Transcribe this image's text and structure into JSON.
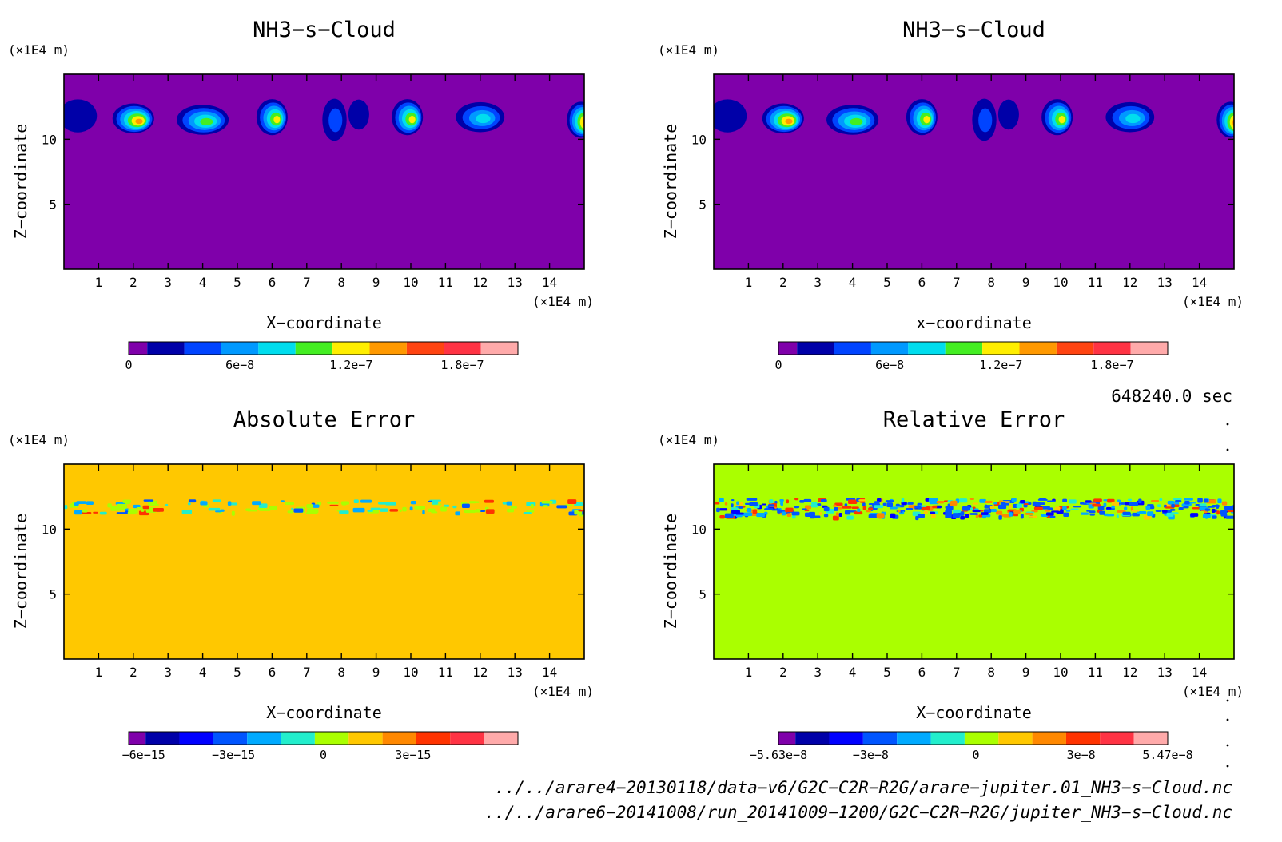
{
  "panels": [
    {
      "title": "NH3−s−Cloud",
      "xlabel": "X−coordinate",
      "ylabel": "Z−coordinate",
      "xunit": "(×1E4 m)",
      "yunit": "(×1E4 m)",
      "background": "#7f00aa",
      "colorbar_colors": [
        "#7f00aa",
        "#0000a8",
        "#0044ff",
        "#0099ff",
        "#00ddee",
        "#44ee22",
        "#ffee00",
        "#ff9900",
        "#ff4411",
        "#ff3344",
        "#ffaaaa"
      ],
      "colorbar_labels": [
        "0",
        "6e−8",
        "1.2e−7",
        "1.8e−7"
      ]
    },
    {
      "title": "NH3−s−Cloud",
      "xlabel": "x−coordinate",
      "ylabel": "Z−coordinate",
      "xunit": "(×1E4 m)",
      "yunit": "(×1E4 m)",
      "background": "#7f00aa",
      "colorbar_colors": [
        "#7f00aa",
        "#0000a8",
        "#0044ff",
        "#0099ff",
        "#00ddee",
        "#44ee22",
        "#ffee00",
        "#ff9900",
        "#ff4411",
        "#ff3344",
        "#ffaaaa"
      ],
      "colorbar_labels": [
        "0",
        "6e−8",
        "1.2e−7",
        "1.8e−7"
      ]
    },
    {
      "title": "Absolute Error",
      "xlabel": "X−coordinate",
      "ylabel": "Z−coordinate",
      "xunit": "(×1E4 m)",
      "yunit": "(×1E4 m)",
      "background": "#ffc800",
      "colorbar_colors": [
        "#7f00aa",
        "#0000a8",
        "#0000ff",
        "#0055ff",
        "#00aaff",
        "#22eecc",
        "#aaff00",
        "#ffc800",
        "#ff8800",
        "#ff3300",
        "#ff3344",
        "#ffaaaa"
      ],
      "colorbar_labels": [
        "−6e−15",
        "−3e−15",
        "0",
        "3e−15"
      ]
    },
    {
      "title": "Relative Error",
      "xlabel": "X−coordinate",
      "ylabel": "Z−coordinate",
      "xunit": "(×1E4 m)",
      "yunit": "(×1E4 m)",
      "background": "#aaff00",
      "colorbar_colors": [
        "#7f00aa",
        "#0000a8",
        "#0000ff",
        "#0055ff",
        "#00aaff",
        "#22eecc",
        "#aaff00",
        "#ffc800",
        "#ff8800",
        "#ff3300",
        "#ff3344",
        "#ffaaaa"
      ],
      "colorbar_labels": [
        "−5.63e−8",
        "−3e−8",
        "0",
        "3e−8",
        "5.47e−8"
      ]
    }
  ],
  "time_label": "648240.0 sec",
  "footer": {
    "line1": "../../arare4−20130118/data−v6/G2C−C2R−R2G/arare−jupiter.01_NH3−s−Cloud.nc",
    "line2": "../../arare6−20141008/run_20141009−1200/G2C−C2R−R2G/jupiter_NH3−s−Cloud.nc"
  },
  "chart_data": [
    {
      "type": "heatmap",
      "title": "NH3−s−Cloud",
      "xlabel": "X−coordinate",
      "ylabel": "Z−coordinate",
      "xlim": [
        0,
        15
      ],
      "ylim": [
        0,
        15
      ],
      "xticks": [
        1,
        2,
        3,
        4,
        5,
        6,
        7,
        8,
        9,
        10,
        11,
        12,
        13,
        14
      ],
      "yticks": [
        5,
        10
      ],
      "colorbar": {
        "min": 0,
        "max": 2.1e-07,
        "ticks": [
          0,
          6e-08,
          1.2e-07,
          1.8e-07
        ]
      },
      "cloud_features": [
        {
          "x": 0.4,
          "z": 11.8,
          "value": 3e-08
        },
        {
          "x": 2.0,
          "z": 11.6,
          "value": 1.5e-07
        },
        {
          "x": 4.0,
          "z": 11.5,
          "value": 1e-07
        },
        {
          "x": 6.0,
          "z": 11.7,
          "value": 1.3e-07
        },
        {
          "x": 7.8,
          "z": 11.5,
          "value": 4e-08
        },
        {
          "x": 8.5,
          "z": 11.9,
          "value": 3e-08
        },
        {
          "x": 9.9,
          "z": 11.7,
          "value": 1.2e-07
        },
        {
          "x": 12.0,
          "z": 11.7,
          "value": 9e-08
        },
        {
          "x": 14.9,
          "z": 11.5,
          "value": 1.7e-07
        }
      ]
    },
    {
      "type": "heatmap",
      "title": "NH3−s−Cloud",
      "xlabel": "x−coordinate",
      "ylabel": "Z−coordinate",
      "xlim": [
        0,
        15
      ],
      "ylim": [
        0,
        15
      ],
      "xticks": [
        1,
        2,
        3,
        4,
        5,
        6,
        7,
        8,
        9,
        10,
        11,
        12,
        13,
        14
      ],
      "yticks": [
        5,
        10
      ],
      "colorbar": {
        "min": 0,
        "max": 2.1e-07,
        "ticks": [
          0,
          6e-08,
          1.2e-07,
          1.8e-07
        ]
      },
      "cloud_features": [
        {
          "x": 0.4,
          "z": 11.8,
          "value": 3e-08
        },
        {
          "x": 2.0,
          "z": 11.6,
          "value": 1.5e-07
        },
        {
          "x": 4.0,
          "z": 11.5,
          "value": 1e-07
        },
        {
          "x": 6.0,
          "z": 11.7,
          "value": 1.3e-07
        },
        {
          "x": 7.8,
          "z": 11.5,
          "value": 4e-08
        },
        {
          "x": 8.5,
          "z": 11.9,
          "value": 3e-08
        },
        {
          "x": 9.9,
          "z": 11.7,
          "value": 1.2e-07
        },
        {
          "x": 12.0,
          "z": 11.7,
          "value": 9e-08
        },
        {
          "x": 14.9,
          "z": 11.5,
          "value": 1.7e-07
        }
      ]
    },
    {
      "type": "heatmap",
      "title": "Absolute Error",
      "xlabel": "X−coordinate",
      "ylabel": "Z−coordinate",
      "xlim": [
        0,
        15
      ],
      "ylim": [
        0,
        15
      ],
      "xticks": [
        1,
        2,
        3,
        4,
        5,
        6,
        7,
        8,
        9,
        10,
        11,
        12,
        13,
        14
      ],
      "yticks": [
        5,
        10
      ],
      "colorbar": {
        "min": -6.5e-15,
        "max": 6.5e-15,
        "ticks": [
          -6e-15,
          -3e-15,
          0,
          3e-15
        ]
      },
      "error_band_z": [
        11.3,
        12.3
      ]
    },
    {
      "type": "heatmap",
      "title": "Relative Error",
      "xlabel": "X−coordinate",
      "ylabel": "Z−coordinate",
      "xlim": [
        0,
        15
      ],
      "ylim": [
        0,
        15
      ],
      "xticks": [
        1,
        2,
        3,
        4,
        5,
        6,
        7,
        8,
        9,
        10,
        11,
        12,
        13,
        14
      ],
      "yticks": [
        5,
        10
      ],
      "colorbar": {
        "min": -5.63e-08,
        "max": 5.47e-08,
        "ticks": [
          -5.63e-08,
          -3e-08,
          0,
          3e-08,
          5.47e-08
        ]
      },
      "error_band_z": [
        11.0,
        12.4
      ]
    }
  ]
}
